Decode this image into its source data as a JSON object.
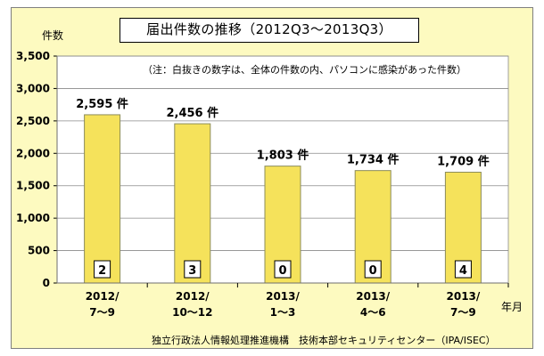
{
  "chart_data": {
    "type": "bar",
    "title": "届出件数の推移（2012Q3〜2013Q3）",
    "ylabel": "件数",
    "xlabel": "年月",
    "note": "（注：白抜きの数字は、全体の件数の内、パソコンに感染があった件数）",
    "source": "独立行政法人情報処理推進機構　技術本部セキュリティセンター（IPA/ISEC）",
    "categories": [
      [
        "2012/",
        "7〜9"
      ],
      [
        "2012/",
        "10〜12"
      ],
      [
        "2013/",
        "1〜3"
      ],
      [
        "2013/",
        "4〜6"
      ],
      [
        "2013/",
        "7〜9"
      ]
    ],
    "values": [
      2595,
      2456,
      1803,
      1734,
      1709
    ],
    "data_labels": [
      "2,595 件",
      "2,456 件",
      "1,803 件",
      "1,734 件",
      "1,709 件"
    ],
    "infected_counts": [
      "2",
      "3",
      "0",
      "0",
      "4"
    ],
    "ylim": [
      0,
      3500
    ],
    "yticks": [
      0,
      500,
      1000,
      1500,
      2000,
      2500,
      3000,
      3500
    ],
    "ytick_labels": [
      "0",
      "500",
      "1,000",
      "1,500",
      "2,000",
      "2,500",
      "3,000",
      "3,500"
    ],
    "grid": true,
    "colors": {
      "bar": "#f5e25b",
      "bar_edge": "#8c8c5a",
      "background": "#fdfac0",
      "plot": "#ffffff"
    }
  }
}
